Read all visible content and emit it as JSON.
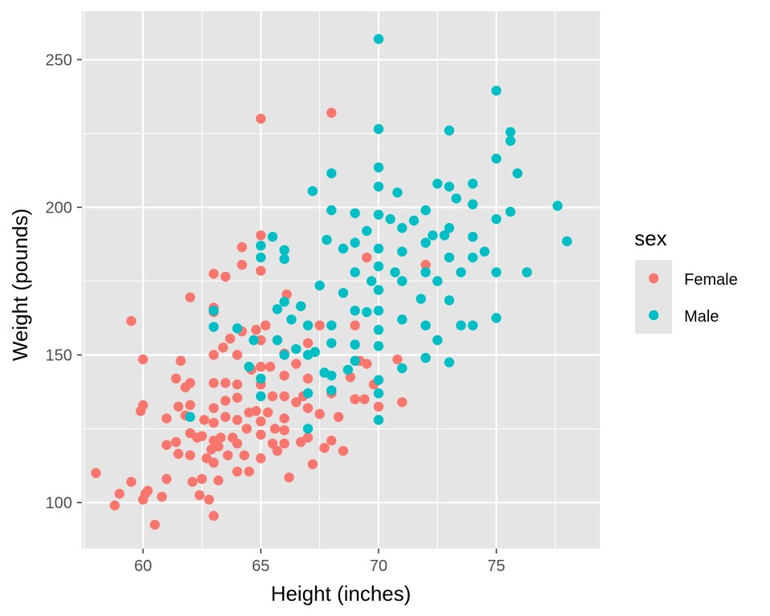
{
  "chart_data": {
    "type": "scatter",
    "title": "",
    "xlabel": "Height (inches)",
    "ylabel": "Weight (pounds)",
    "xlim": [
      57.4,
      79.4
    ],
    "ylim": [
      84.4,
      266.4
    ],
    "x_ticks": [
      60,
      65,
      70,
      75
    ],
    "y_ticks": [
      100,
      150,
      200,
      250
    ],
    "x_tick_labels": [
      "60",
      "65",
      "70",
      "75"
    ],
    "y_tick_labels": [
      "100",
      "150",
      "200",
      "250"
    ],
    "background": "#e5e5e5",
    "grid_color": "#ffffff",
    "legend": {
      "title": "sex",
      "position": "right",
      "entries": [
        {
          "label": "Female",
          "color": "#f8766d"
        },
        {
          "label": "Male",
          "color": "#00bfc4"
        }
      ]
    },
    "series": [
      {
        "name": "Female",
        "color": "#f8766d",
        "points": [
          [
            58,
            110
          ],
          [
            58.8,
            99
          ],
          [
            59,
            103
          ],
          [
            59.5,
            107
          ],
          [
            59.5,
            161.5
          ],
          [
            60,
            101
          ],
          [
            60.2,
            104
          ],
          [
            60.5,
            92.5
          ],
          [
            60,
            148.5
          ],
          [
            60,
            133
          ],
          [
            59.9,
            131
          ],
          [
            60.1,
            103
          ],
          [
            60.8,
            102
          ],
          [
            61,
            119.5
          ],
          [
            61,
            128.5
          ],
          [
            61,
            108
          ],
          [
            61.5,
            116.5
          ],
          [
            61.4,
            120.5
          ],
          [
            61.4,
            142
          ],
          [
            61.5,
            132.5
          ],
          [
            61.6,
            148
          ],
          [
            61.8,
            139
          ],
          [
            61.8,
            129.5
          ],
          [
            62,
            169.5
          ],
          [
            62,
            140.5
          ],
          [
            62,
            123.5
          ],
          [
            62,
            116
          ],
          [
            62.1,
            107
          ],
          [
            62,
            133
          ],
          [
            62.3,
            122
          ],
          [
            62.4,
            102.5
          ],
          [
            62.5,
            108
          ],
          [
            62.5,
            122.5
          ],
          [
            62.6,
            128
          ],
          [
            62.7,
            115
          ],
          [
            62.8,
            101
          ],
          [
            62.9,
            118
          ],
          [
            63,
            95.5
          ],
          [
            63,
            113.5
          ],
          [
            63,
            121
          ],
          [
            63,
            127
          ],
          [
            63,
            132
          ],
          [
            63,
            140.5
          ],
          [
            63,
            150
          ],
          [
            63,
            164.5
          ],
          [
            63,
            166
          ],
          [
            63,
            177.5
          ],
          [
            63.2,
            107.5
          ],
          [
            63.2,
            119
          ],
          [
            63.3,
            122
          ],
          [
            63.4,
            152.5
          ],
          [
            63.5,
            176.5
          ],
          [
            63.5,
            140.5
          ],
          [
            63.5,
            129
          ],
          [
            63.5,
            134.5
          ],
          [
            63.6,
            116
          ],
          [
            63.7,
            155.5
          ],
          [
            63.8,
            122
          ],
          [
            64,
            110.5
          ],
          [
            64,
            120
          ],
          [
            64,
            128
          ],
          [
            64,
            135.5
          ],
          [
            64,
            140
          ],
          [
            64,
            150
          ],
          [
            64.2,
            186.5
          ],
          [
            64.2,
            180.5
          ],
          [
            64.2,
            158
          ],
          [
            64.3,
            116
          ],
          [
            64.4,
            125
          ],
          [
            64.5,
            130.5
          ],
          [
            64.5,
            110.5
          ],
          [
            64.6,
            145
          ],
          [
            64.8,
            158.5
          ],
          [
            64.8,
            131
          ],
          [
            65,
            230
          ],
          [
            65,
            190.5
          ],
          [
            65,
            178.5
          ],
          [
            65,
            155
          ],
          [
            65,
            146
          ],
          [
            65,
            140
          ],
          [
            65,
            127.5
          ],
          [
            65,
            123
          ],
          [
            65,
            115
          ],
          [
            65.2,
            160
          ],
          [
            65.3,
            130.5
          ],
          [
            65.4,
            146
          ],
          [
            65.5,
            136
          ],
          [
            65.5,
            120
          ],
          [
            65.6,
            125
          ],
          [
            65.7,
            117.5
          ],
          [
            66,
            150.5
          ],
          [
            66,
            143
          ],
          [
            66,
            136
          ],
          [
            66,
            128.5
          ],
          [
            66,
            124.5
          ],
          [
            66,
            120
          ],
          [
            66.1,
            170.5
          ],
          [
            66.2,
            108.5
          ],
          [
            66.5,
            147
          ],
          [
            66.5,
            134
          ],
          [
            66.7,
            120.5
          ],
          [
            66.8,
            136
          ],
          [
            67,
            154
          ],
          [
            67,
            142
          ],
          [
            67,
            132
          ],
          [
            67,
            122
          ],
          [
            67.2,
            113
          ],
          [
            67.5,
            160
          ],
          [
            67.5,
            130
          ],
          [
            67.7,
            118.5
          ],
          [
            68,
            232
          ],
          [
            68,
            137
          ],
          [
            68,
            121
          ],
          [
            68.3,
            129
          ],
          [
            68.5,
            117.5
          ],
          [
            68.8,
            142.5
          ],
          [
            69,
            160
          ],
          [
            69,
            135
          ],
          [
            69.2,
            148
          ],
          [
            69.4,
            135
          ],
          [
            69.5,
            147
          ],
          [
            69.5,
            183
          ],
          [
            69.8,
            140
          ],
          [
            70,
            132.5
          ],
          [
            70.8,
            148.5
          ],
          [
            71,
            134
          ],
          [
            72,
            180.5
          ]
        ]
      },
      {
        "name": "Male",
        "color": "#00bfc4",
        "points": [
          [
            62,
            129
          ],
          [
            63,
            159.5
          ],
          [
            63,
            165
          ],
          [
            64,
            159
          ],
          [
            64.5,
            146
          ],
          [
            64.7,
            155
          ],
          [
            65,
            142
          ],
          [
            65,
            136
          ],
          [
            65,
            187
          ],
          [
            65,
            183
          ],
          [
            65.5,
            190
          ],
          [
            65.7,
            165.5
          ],
          [
            65.7,
            155
          ],
          [
            66,
            168
          ],
          [
            66,
            150
          ],
          [
            66,
            185.5
          ],
          [
            66,
            182.5
          ],
          [
            66.3,
            162
          ],
          [
            66.5,
            152
          ],
          [
            66.7,
            166.5
          ],
          [
            67,
            160
          ],
          [
            67,
            150
          ],
          [
            67,
            137
          ],
          [
            67,
            125
          ],
          [
            67.2,
            205.5
          ],
          [
            67.3,
            151
          ],
          [
            67.5,
            173.5
          ],
          [
            67.7,
            144
          ],
          [
            67.8,
            189
          ],
          [
            68,
            211.5
          ],
          [
            68,
            199
          ],
          [
            68,
            160
          ],
          [
            68,
            154
          ],
          [
            68,
            143
          ],
          [
            68,
            138
          ],
          [
            68.5,
            186
          ],
          [
            68.5,
            171
          ],
          [
            68.7,
            145
          ],
          [
            69,
            198
          ],
          [
            69,
            188
          ],
          [
            69,
            178
          ],
          [
            69,
            165
          ],
          [
            69,
            153.5
          ],
          [
            69,
            148
          ],
          [
            69.5,
            192
          ],
          [
            69.5,
            164.5
          ],
          [
            69.7,
            175
          ],
          [
            70,
            257
          ],
          [
            70,
            226.5
          ],
          [
            70,
            213.5
          ],
          [
            70,
            207
          ],
          [
            70,
            197.5
          ],
          [
            70,
            186
          ],
          [
            70,
            180
          ],
          [
            70,
            172
          ],
          [
            70,
            165
          ],
          [
            70,
            158.5
          ],
          [
            70,
            153
          ],
          [
            70,
            141.5
          ],
          [
            70,
            137
          ],
          [
            70,
            128
          ],
          [
            70.5,
            196
          ],
          [
            70.7,
            178
          ],
          [
            70.8,
            205
          ],
          [
            71,
            193
          ],
          [
            71,
            185
          ],
          [
            71,
            175
          ],
          [
            71,
            162
          ],
          [
            71,
            145.5
          ],
          [
            71.5,
            195.5
          ],
          [
            71.8,
            169
          ],
          [
            72,
            199
          ],
          [
            72,
            188
          ],
          [
            72,
            178
          ],
          [
            72,
            160
          ],
          [
            72,
            149
          ],
          [
            72.3,
            190.5
          ],
          [
            72.5,
            208
          ],
          [
            72.5,
            175
          ],
          [
            72.5,
            155
          ],
          [
            72.8,
            190.5
          ],
          [
            73,
            226
          ],
          [
            73,
            207
          ],
          [
            73,
            193
          ],
          [
            73,
            183
          ],
          [
            73,
            168.5
          ],
          [
            73,
            147.5
          ],
          [
            73.3,
            203
          ],
          [
            73.5,
            160
          ],
          [
            73.5,
            178
          ],
          [
            74,
            208
          ],
          [
            74,
            201
          ],
          [
            74,
            190
          ],
          [
            74,
            183
          ],
          [
            74,
            160
          ],
          [
            74.5,
            185
          ],
          [
            75,
            239.5
          ],
          [
            75,
            216.5
          ],
          [
            75,
            196
          ],
          [
            75,
            178
          ],
          [
            75,
            162.5
          ],
          [
            75.6,
            225.5
          ],
          [
            75.6,
            222.5
          ],
          [
            75.6,
            198.5
          ],
          [
            75.9,
            211.5
          ],
          [
            76.3,
            178
          ],
          [
            77.6,
            200.5
          ],
          [
            78,
            188.5
          ]
        ]
      }
    ]
  }
}
